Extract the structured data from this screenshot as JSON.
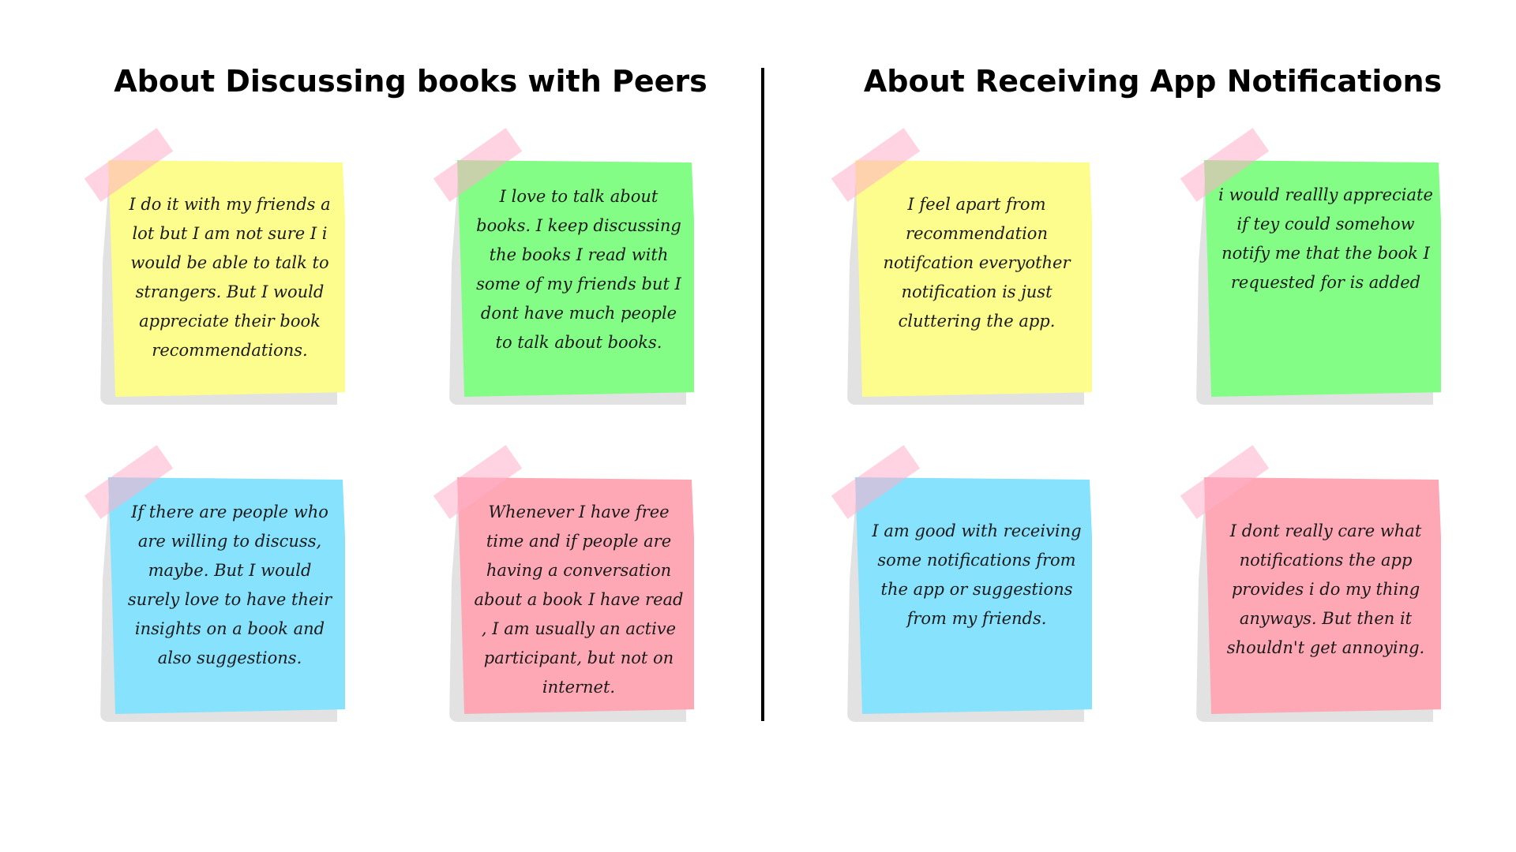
{
  "sections": [
    {
      "title": "About Discussing books with Peers",
      "notes": [
        {
          "color": "#fdfd8d",
          "text": "I do it with my friends a lot but I am not sure I i would be able to talk to strangers. But I would appreciate their book recommendations."
        },
        {
          "color": "#84fd87",
          "text": "I love to talk about books. I keep discussing the books I read with some of my friends but I dont have much people to talk about books."
        },
        {
          "color": "#86e2fd",
          "text": "If there are people who are willing to discuss, maybe. But I would surely love to have their insights on a book and also suggestions."
        },
        {
          "color": "#fea8b6",
          "text": "Whenever I have free time and if people are having a conversation about a book I have read , I am usually an active participant, but not on internet."
        }
      ]
    },
    {
      "title": "About Receiving App Notifications",
      "notes": [
        {
          "color": "#fdfd8d",
          "text": "I feel apart from recommendation notifcation everyother notification is just cluttering the app."
        },
        {
          "color": "#84fd87",
          "text": "i would reallly appreciate if tey could somehow notify me that the book I requested for is added"
        },
        {
          "color": "#86e2fd",
          "text": "I am good with receiving some notifications from the app or suggestions from my friends."
        },
        {
          "color": "#fea8b6",
          "text": "I dont really care what notifications the app provides i do my thing anyways. But then it shouldn't get annoying."
        }
      ]
    }
  ]
}
